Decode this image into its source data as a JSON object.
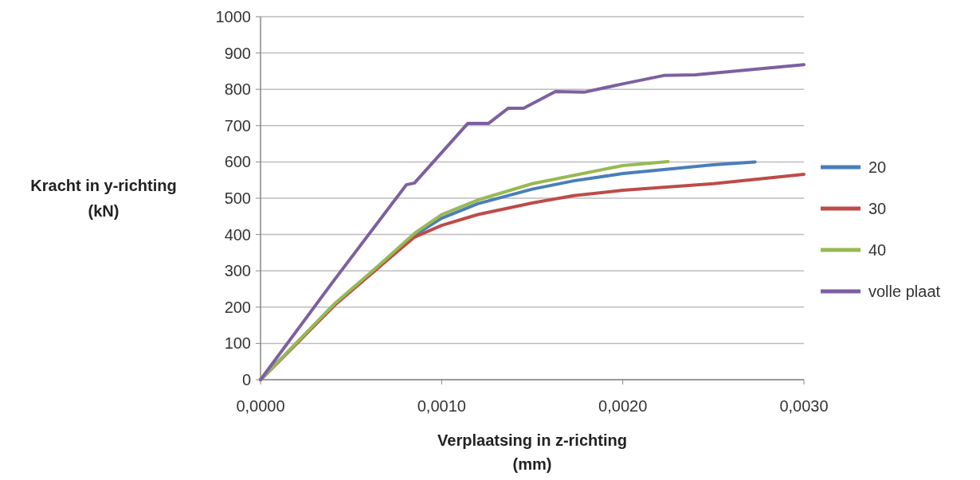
{
  "chart_data": {
    "type": "line",
    "xlabel": "Verplaatsing in z-richting\n(mm)",
    "ylabel": "Kracht in y-richting\n(kN)",
    "xlim": [
      0,
      0.003
    ],
    "xticks": [
      {
        "value": 0,
        "label": "0,0000"
      },
      {
        "value": 0.001,
        "label": "0,0010"
      },
      {
        "value": 0.002,
        "label": "0,0020"
      },
      {
        "value": 0.003,
        "label": "0,0030"
      }
    ],
    "ylim": [
      0,
      1000
    ],
    "yticks": [
      0,
      100,
      200,
      300,
      400,
      500,
      600,
      700,
      800,
      900,
      1000
    ],
    "grid": "y",
    "legend": "right",
    "marker": "none",
    "line_style": "solid",
    "series": [
      {
        "name": "20",
        "color": "#4a7ebb",
        "x": [
          0,
          0.0002,
          0.00041,
          0.00063,
          0.00085,
          0.001,
          0.0012,
          0.0015,
          0.00173,
          0.002,
          0.0025,
          0.00273
        ],
        "values": [
          0,
          100,
          206,
          300,
          398,
          445,
          485,
          525,
          548,
          568,
          592,
          600
        ]
      },
      {
        "name": "30",
        "color": "#be4b48",
        "x": [
          0,
          0.0002,
          0.00041,
          0.00063,
          0.00085,
          0.001,
          0.0012,
          0.0015,
          0.00173,
          0.002,
          0.0025,
          0.003
        ],
        "values": [
          0,
          100,
          206,
          300,
          393,
          425,
          455,
          487,
          507,
          522,
          540,
          566
        ]
      },
      {
        "name": "40",
        "color": "#98b954",
        "x": [
          0,
          0.0002,
          0.00041,
          0.00063,
          0.00085,
          0.001,
          0.0012,
          0.0015,
          0.00173,
          0.002,
          0.00225
        ],
        "values": [
          0,
          103,
          210,
          305,
          403,
          455,
          495,
          540,
          563,
          590,
          601
        ]
      },
      {
        "name": "volle plaat",
        "color": "#7d60a0",
        "x": [
          0,
          0.0004,
          0.000805,
          0.00085,
          0.001144,
          0.001258,
          0.001368,
          0.001452,
          0.001628,
          0.001786,
          0.002,
          0.002226,
          0.0024,
          0.003
        ],
        "values": [
          0,
          270,
          537,
          542,
          706,
          706,
          748,
          748,
          794,
          792,
          815,
          838,
          840,
          868
        ]
      }
    ]
  }
}
